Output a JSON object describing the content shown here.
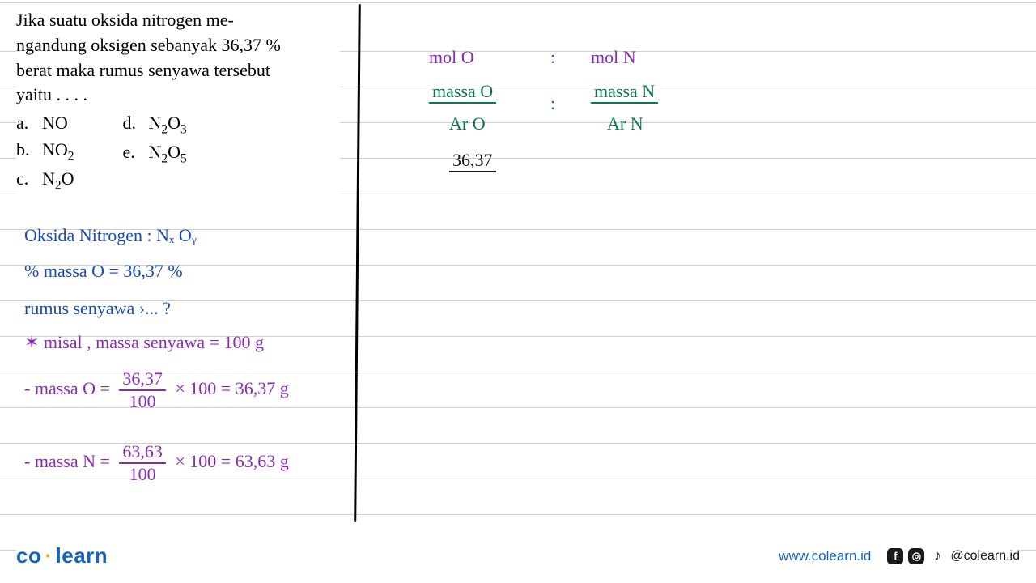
{
  "question": {
    "text": "Jika suatu oksida nitrogen me-\nngandung oksigen sebanyak 36,37 %\nberat maka rumus senyawa tersebut\nyaitu . . . .",
    "options_left": [
      {
        "label": "a.",
        "formula_html": "NO"
      },
      {
        "label": "b.",
        "formula_html": "NO<sub>2</sub>"
      },
      {
        "label": "c.",
        "formula_html": "N<sub>2</sub>O"
      }
    ],
    "options_right": [
      {
        "label": "d.",
        "formula_html": "N<sub>2</sub>O<sub>3</sub>"
      },
      {
        "label": "e.",
        "formula_html": "N<sub>2</sub>O<sub>5</sub>"
      }
    ]
  },
  "handwriting": {
    "right": {
      "line1_l": "mol   O",
      "line1_m": ":",
      "line1_r": "mol    N",
      "line2_l": "massa O",
      "line2_m": ":",
      "line2_r": "massa N",
      "line3_l": "Ar  O",
      "line3_r": "Ar N",
      "line4": "36,37"
    },
    "left": {
      "l1": "Oksida Nitrogen : Nₓ Oᵧ",
      "l2": "% massa O = 36,37 %",
      "l3": "rumus senyawa  ›... ?",
      "l4": "✶ misal , massa senyawa = 100 g",
      "l5a": "- massa O =",
      "l5b_num": "36,37",
      "l5b_den": "100",
      "l5c": "× 100 = 36,37 g",
      "l6a": "- massa N =",
      "l6b_num": "63,63",
      "l6b_den": "100",
      "l6c": "× 100 = 63,63 g"
    }
  },
  "footer": {
    "logo_co": "co",
    "logo_learn": "learn",
    "url": "www.colearn.id",
    "handle": "@colearn.id"
  },
  "colors": {
    "blue_ink": "#1a4db3",
    "purple_ink": "#8b2bb5",
    "green_ink": "#0a7a4a",
    "black_ink": "#1a1a1a",
    "brand_blue": "#1565c0",
    "brand_yellow": "#f9a825",
    "line_gray": "#d0d0d0"
  }
}
